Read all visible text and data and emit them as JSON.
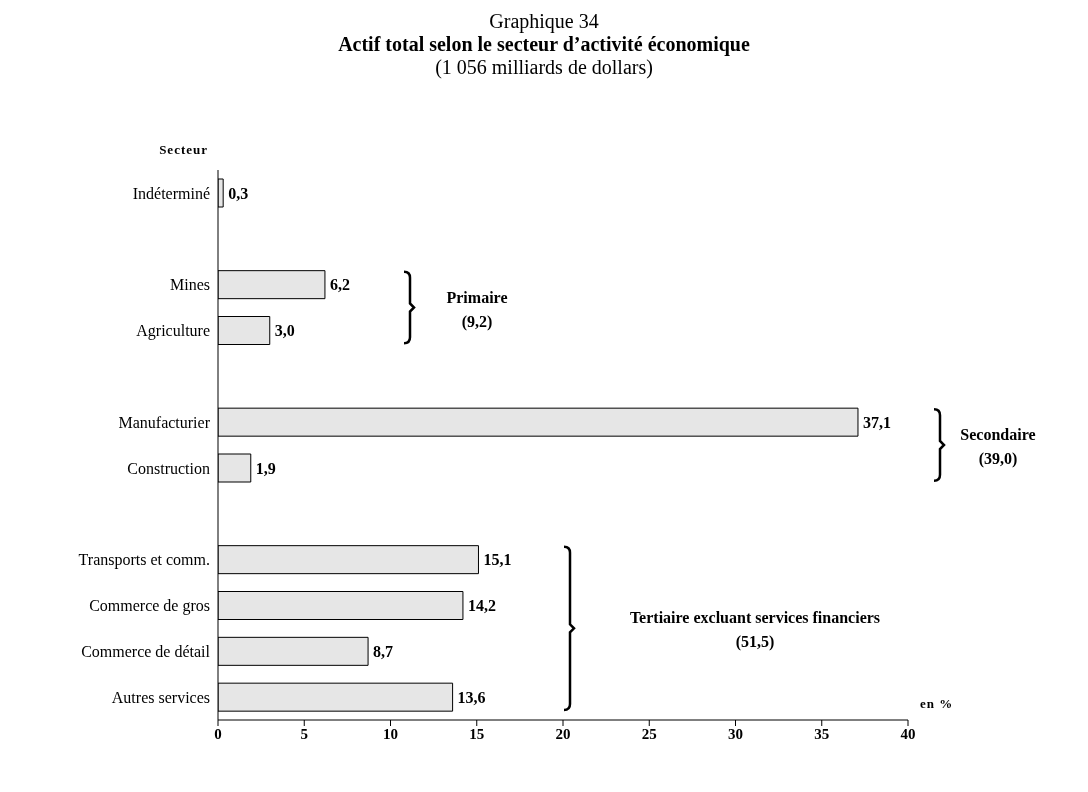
{
  "chart_data": {
    "type": "bar",
    "orientation": "horizontal",
    "title": "Graphique 34",
    "subtitle": "Actif total selon le secteur d’activité économique",
    "ylabel": "Secteur",
    "xlabel": "en %",
    "categories": [
      "Indéterminé",
      null,
      "Mines",
      "Agriculture",
      null,
      "Manufacturier",
      "Construction",
      null,
      "Transports et comm.",
      "Commerce de gros",
      "Commerce de détail",
      "Autres services"
    ],
    "values": [
      0.3,
      null,
      6.2,
      3.0,
      null,
      37.1,
      1.9,
      null,
      15.1,
      14.2,
      8.7,
      13.6
    ],
    "value_labels": [
      "0,3",
      null,
      "6,2",
      "3,0",
      null,
      "37,1",
      "1,9",
      null,
      "15,1",
      "14,2",
      "8,7",
      "13,6"
    ],
    "color": "#e6e6e6",
    "xlim": [
      0,
      40
    ],
    "xticks": [
      0,
      5,
      10,
      15,
      20,
      25,
      30,
      35,
      40
    ],
    "grid": false,
    "legend": false,
    "annotations": [
      "(1 056 milliards de dollars)",
      "Primaire\n(9,2)",
      "Secondaire\n(39,0)",
      "Tertiaire excluant services financiers\n(51,5)"
    ]
  }
}
